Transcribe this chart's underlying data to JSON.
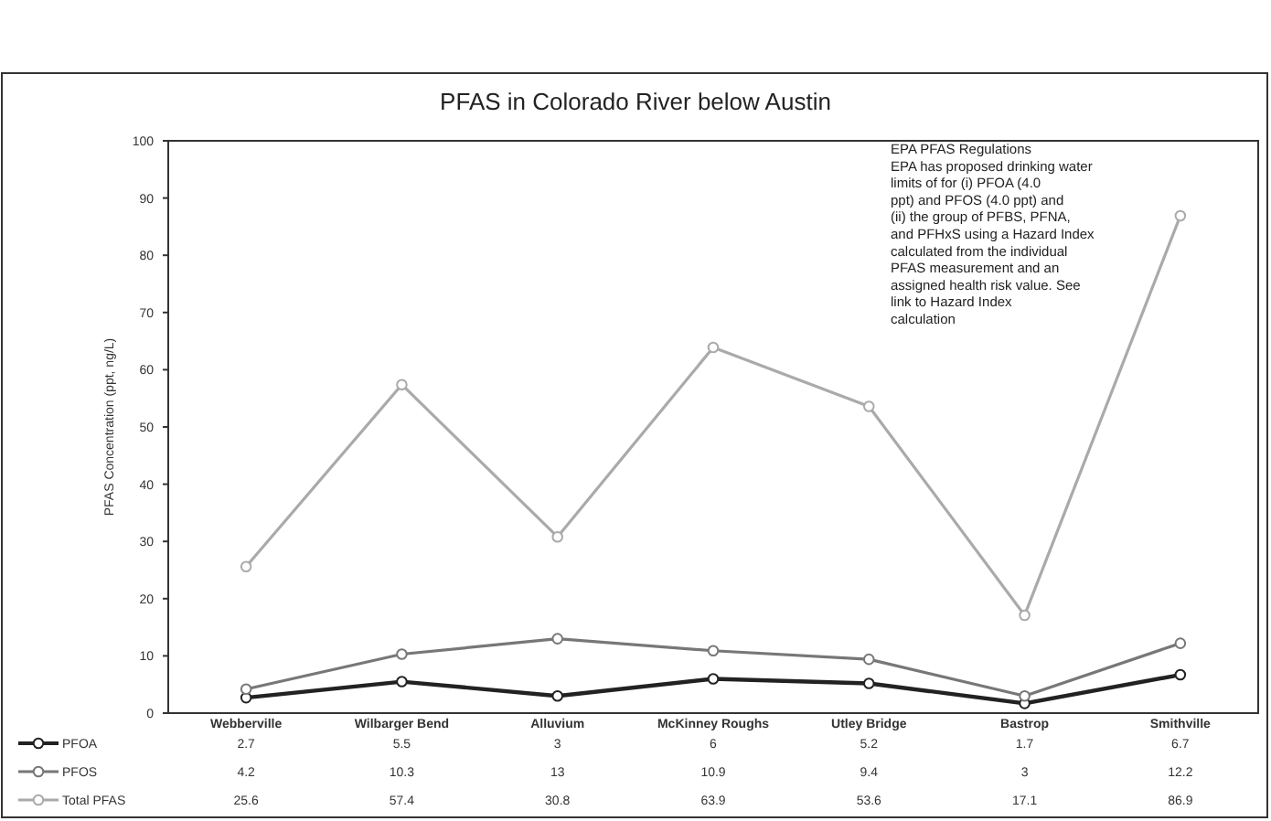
{
  "chart_data": {
    "type": "line",
    "title": "PFAS in Colorado River below Austin",
    "ylabel": "PFAS Concentration (ppt, ng/L)",
    "categories": [
      "Webberville",
      "Wilbarger Bend",
      "Alluvium",
      "McKinney Roughs",
      "Utley Bridge",
      "Bastrop",
      "Smithville"
    ],
    "series": [
      {
        "name": "PFOA",
        "color": "#222222",
        "values": [
          2.7,
          5.5,
          3,
          6,
          5.2,
          1.7,
          6.7
        ]
      },
      {
        "name": "PFOS",
        "color": "#777777",
        "values": [
          4.2,
          10.3,
          13,
          10.9,
          9.4,
          3,
          12.2
        ]
      },
      {
        "name": "Total PFAS",
        "color": "#aaaaaa",
        "values": [
          25.6,
          57.4,
          30.8,
          63.9,
          53.6,
          17.1,
          86.9
        ]
      }
    ],
    "ylim": [
      0,
      100
    ],
    "yticks": [
      0,
      10,
      20,
      30,
      40,
      50,
      60,
      70,
      80,
      90,
      100
    ],
    "annotations": [
      "EPA PFAS Regulations",
      "EPA has proposed drinking water limits of for (i) PFOA (4.0 ppt) and PFOS (4.0 ppt) and (ii) the group of PFBS, PFNA, and PFHxS using a Hazard Index calculated from the individual PFAS measurement and an assigned health risk value. See link to Hazard Index calculation"
    ],
    "data_labels": true,
    "legend": "bottom",
    "marker": "circle"
  }
}
